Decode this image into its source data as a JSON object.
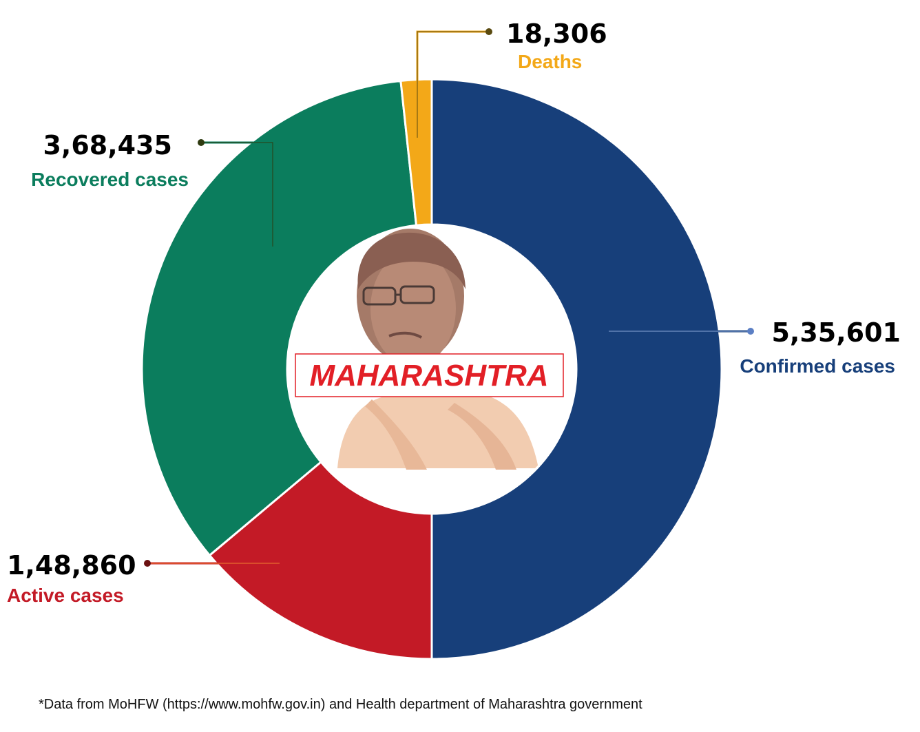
{
  "chart_data": {
    "type": "pie",
    "style": "donut",
    "center_label": "MAHARASHTRA",
    "slices": [
      {
        "label": "Confirmed cases",
        "value": 535601,
        "value_text": "5,35,601",
        "color": "#173f7a"
      },
      {
        "label": "Active cases",
        "value": 148860,
        "value_text": "1,48,860",
        "color": "#c31a26"
      },
      {
        "label": "Recovered cases",
        "value": 368435,
        "value_text": "3,68,435",
        "color": "#0b7d5d"
      },
      {
        "label": "Deaths",
        "value": 18306,
        "value_text": "18,306",
        "color": "#f3a818"
      }
    ]
  },
  "footnote": "*Data from MoHFW (https://www.mohfw.gov.in) and Health department of Maharashtra government",
  "portrait_icon": "person-portrait"
}
